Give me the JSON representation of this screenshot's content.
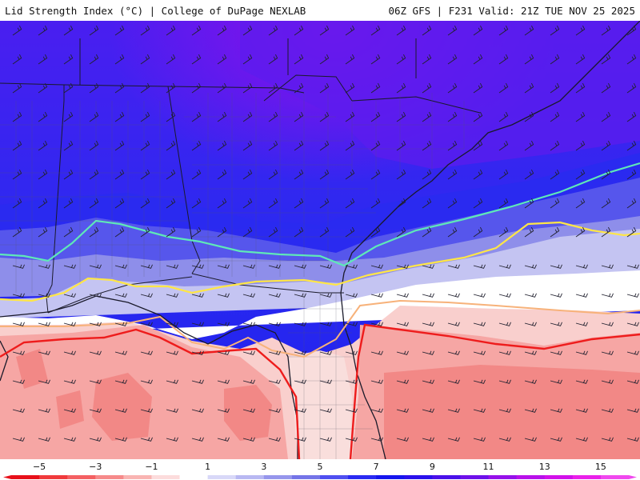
{
  "header": {
    "left_title": "Lid Strength Index (°C) | College of DuPage NEXLAB",
    "right_title": "06Z GFS | F231 Valid: 21Z TUE NOV 25 2025"
  },
  "colorbar": {
    "min": -6,
    "max": 16,
    "tick_labels": [
      "−5",
      "−3",
      "−1",
      "1",
      "3",
      "5",
      "7",
      "9",
      "11",
      "13",
      "15"
    ],
    "tick_values": [
      -5,
      -3,
      -1,
      1,
      3,
      5,
      7,
      9,
      11,
      13,
      15
    ],
    "colors": [
      "#e8101a",
      "#f03a3c",
      "#f46062",
      "#f68a8a",
      "#f9b4b2",
      "#fcdcdc",
      "#ffffff",
      "#d8d8f8",
      "#b8b8f2",
      "#9696ec",
      "#7474e8",
      "#4f4ff0",
      "#2a2af2",
      "#1515ee",
      "#2a10ec",
      "#4a10ea",
      "#6e10ea",
      "#9610ea",
      "#b810ea",
      "#d210ea",
      "#ea20ea",
      "#f048ee"
    ]
  },
  "legend_contours": [
    {
      "value": 5,
      "color": "#5fe8b8"
    },
    {
      "value": 3,
      "color": "#ffe646"
    },
    {
      "value": 1,
      "color": "#f7b27a"
    },
    {
      "value": -1,
      "color": "#ee1c1c"
    }
  ],
  "map": {
    "region": "Southeastern United States",
    "colors": {
      "deep_purple": "#7a1ee8",
      "purple": "#5a1ef0",
      "blue": "#2424ee",
      "mid_blue": "#3c3cee",
      "periwinkle": "#8a8aea",
      "lavender": "#c2c2f2",
      "white": "#ffffff",
      "light_pink": "#f9c8c6",
      "pink": "#f6a8a6",
      "salmon": "#f08684",
      "red": "#e85e5c",
      "border": "#1a1a2a",
      "county": "#555566"
    }
  }
}
